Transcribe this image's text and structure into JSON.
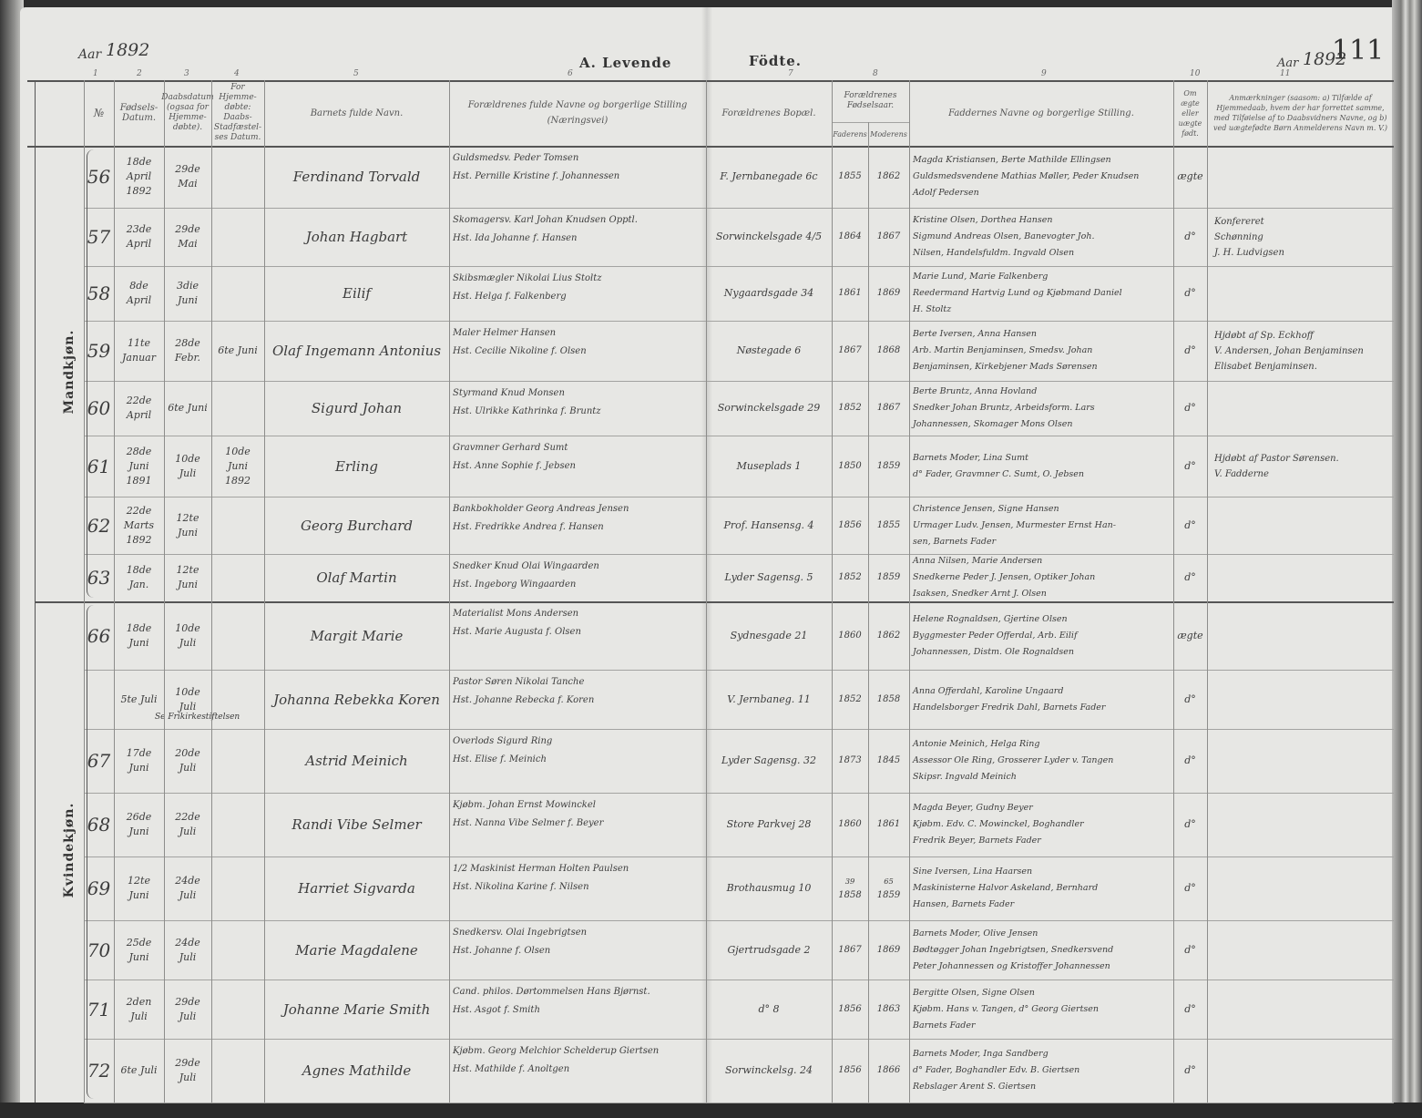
{
  "header": {
    "left_year_label": "Aar",
    "left_year": "1892",
    "right_year_label": "Aar",
    "right_year": "1892",
    "page_number": "111",
    "title_left": "A.  Levende",
    "title_right": "Födte.",
    "column_numbers": [
      "1",
      "2",
      "3",
      "4",
      "5",
      "6",
      "7",
      "8",
      "9",
      "10",
      "11"
    ],
    "columns": {
      "no": "№",
      "birth_date": "Fødsels-Datum.",
      "baptism_date": "Daabsdatum (ogsaa for Hjemme-døbte).",
      "home_baptized": "For Hjemme-døbte: Daabs-Stadfæstel-ses Datum.",
      "child_name": "Barnets fulde Navn.",
      "parents": "Forældrenes fulde Navne og borgerlige Stilling",
      "parents_sub": "(Næringsvei)",
      "residence": "Forældrenes Bopæl.",
      "parents_birth_year": "Forældrenes Fødselsaar.",
      "father": "Faderens",
      "mother": "Moderens",
      "sponsors": "Faddernes Navne og borgerlige Stilling.",
      "legitimate": "Om ægte eller uægte født.",
      "remarks": "Anmærkninger (saasom: a) Tilfælde af Hjemmedaab, hvem der har forrettet samme, med Tilføielse af to Daabsvidners Navne, og b) ved uægtefødte Børn Anmelderens Navn m. V.)"
    }
  },
  "sections": [
    {
      "label": "Mandkjøn.",
      "rows": [
        {
          "no": "56",
          "birth": "18de April 1892",
          "baptism": "29de Mai",
          "confirm": "",
          "name": "Ferdinand Torvald",
          "parents": [
            "Guldsmedsv. Peder Tomsen",
            "Hst. Pernille Kristine f. Johannessen"
          ],
          "residence": "F. Jernbanegade 6c",
          "father_year": "1855",
          "mother_year": "1862",
          "sponsors": [
            "Magda Kristiansen, Berte Mathilde Ellingsen",
            "Guldsmedsvendene Mathias Møller, Peder Knudsen",
            "Adolf Pedersen"
          ],
          "legit": "ægte",
          "remarks": []
        },
        {
          "no": "57",
          "birth": "23de April",
          "baptism": "29de Mai",
          "confirm": "",
          "name": "Johan Hagbart",
          "parents": [
            "Skomagersv. Karl Johan Knudsen Opptl.",
            "Hst. Ida Johanne f. Hansen"
          ],
          "residence": "Sorwinckelsgade 4/5",
          "father_year": "1864",
          "mother_year": "1867",
          "sponsors": [
            "Kristine Olsen, Dorthea Hansen",
            "Sigmund Andreas Olsen, Banevogter Joh.",
            "Nilsen, Handelsfuldm. Ingvald Olsen"
          ],
          "legit": "d°",
          "remarks": [
            "Konfereret",
            "Schønning",
            "J. H. Ludvigsen"
          ]
        },
        {
          "no": "58",
          "birth": "8de April",
          "baptism": "3die Juni",
          "confirm": "",
          "name": "Eilif",
          "parents": [
            "Skibsmægler Nikolai Lius Stoltz",
            "Hst. Helga f. Falkenberg"
          ],
          "residence": "Nygaardsgade 34",
          "father_year": "1861",
          "mother_year": "1869",
          "sponsors": [
            "Marie Lund, Marie Falkenberg",
            "Reedermand Hartvig Lund og Kjøbmand Daniel",
            "H. Stoltz"
          ],
          "legit": "d°",
          "remarks": []
        },
        {
          "no": "59",
          "birth": "11te Januar",
          "baptism": "28de Febr.",
          "confirm": "6te Juni",
          "name": "Olaf Ingemann Antonius",
          "parents": [
            "Maler Helmer Hansen",
            "Hst. Cecilie Nikoline f. Olsen"
          ],
          "residence": "Nøstegade 6",
          "father_year": "1867",
          "mother_year": "1868",
          "sponsors": [
            "Berte Iversen, Anna Hansen",
            "Arb. Martin Benjaminsen, Smedsv. Johan",
            "Benjaminsen, Kirkebjener Mads Sørensen"
          ],
          "legit": "d°",
          "remarks": [
            "Hjdøbt af Sp. Eckhoff",
            "V. Andersen, Johan Benjaminsen",
            "Elisabet Benjaminsen."
          ]
        },
        {
          "no": "60",
          "birth": "22de April",
          "baptism": "6te Juni",
          "confirm": "",
          "name": "Sigurd Johan",
          "parents": [
            "Styrmand Knud Monsen",
            "Hst. Ulrikke Kathrinka f. Bruntz"
          ],
          "residence": "Sorwinckelsgade 29",
          "father_year": "1852",
          "mother_year": "1867",
          "sponsors": [
            "Berte Bruntz, Anna Hovland",
            "Snedker Johan Bruntz, Arbeidsform. Lars",
            "Johannessen, Skomager Mons Olsen"
          ],
          "legit": "d°",
          "remarks": []
        },
        {
          "no": "61",
          "birth": "28de Juni 1891",
          "baptism": "10de Juli",
          "confirm": "10de Juni 1892",
          "name": "Erling",
          "parents": [
            "Gravmner Gerhard Sumt",
            "Hst. Anne Sophie f. Jebsen"
          ],
          "residence": "Museplads 1",
          "father_year": "1850",
          "mother_year": "1859",
          "sponsors": [
            "Barnets Moder, Lina Sumt",
            "d° Fader, Gravmner C. Sumt, O. Jebsen"
          ],
          "legit": "d°",
          "remarks": [
            "Hjdøbt af Pastor Sørensen.",
            "V. Fadderne"
          ]
        },
        {
          "no": "62",
          "birth": "22de Marts 1892",
          "baptism": "12te Juni",
          "confirm": "",
          "name": "Georg Burchard",
          "parents": [
            "Bankbokholder Georg Andreas Jensen",
            "Hst. Fredrikke Andrea f. Hansen"
          ],
          "residence": "Prof. Hansensg. 4",
          "father_year": "1856",
          "mother_year": "1855",
          "sponsors": [
            "Christence Jensen, Signe Hansen",
            "Urmager Ludv. Jensen, Murmester Ernst Han-",
            "sen, Barnets Fader"
          ],
          "legit": "d°",
          "remarks": []
        },
        {
          "no": "63",
          "birth": "18de Jan.",
          "baptism": "12te Juni",
          "confirm": "",
          "name": "Olaf Martin",
          "parents": [
            "Snedker Knud Olai Wingaarden",
            "Hst. Ingeborg Wingaarden"
          ],
          "residence": "Lyder Sagensg. 5",
          "father_year": "1852",
          "mother_year": "1859",
          "sponsors": [
            "Anna Nilsen, Marie Andersen",
            "Snedkerne Peder J. Jensen, Optiker Johan",
            "Isaksen, Snedker Arnt J. Olsen"
          ],
          "legit": "d°",
          "remarks": []
        }
      ]
    },
    {
      "label": "Kvindekjøn.",
      "rows": [
        {
          "no": "66",
          "birth": "18de Juni",
          "baptism": "10de Juli",
          "confirm": "",
          "name": "Margit Marie",
          "parents": [
            "Materialist Mons Andersen",
            "Hst. Marie Augusta f. Olsen"
          ],
          "residence": "Sydnesgade 21",
          "father_year": "1860",
          "mother_year": "1862",
          "sponsors": [
            "Helene Rognaldsen, Gjertine Olsen",
            "Byggmester Peder Offerdal, Arb. Eilif",
            "Johannessen, Distm. Ole Rognaldsen"
          ],
          "legit": "ægte",
          "remarks": []
        },
        {
          "no": "",
          "birth": "5te Juli",
          "baptism": "10de Juli",
          "confirm": "",
          "note": "Se Frikirkestiftelsen",
          "name": "Johanna Rebekka Koren",
          "parents": [
            "Pastor Søren Nikolai Tanche",
            "Hst. Johanne Rebecka f. Koren"
          ],
          "residence": "V. Jernbaneg. 11",
          "father_year": "1852",
          "mother_year": "1858",
          "sponsors": [
            "Anna Offerdahl, Karoline Ungaard",
            "Handelsborger Fredrik Dahl, Barnets Fader"
          ],
          "legit": "d°",
          "remarks": []
        },
        {
          "no": "67",
          "birth": "17de Juni",
          "baptism": "20de Juli",
          "confirm": "",
          "name": "Astrid Meinich",
          "parents": [
            "Overlods Sigurd Ring",
            "Hst. Elise f. Meinich"
          ],
          "residence": "Lyder Sagensg. 32",
          "father_year": "1873",
          "mother_year": "1845",
          "sponsors": [
            "Antonie Meinich, Helga Ring",
            "Assessor Ole Ring, Grosserer Lyder v. Tangen",
            "Skipsr. Ingvald Meinich"
          ],
          "legit": "d°",
          "remarks": []
        },
        {
          "no": "68",
          "birth": "26de Juni",
          "baptism": "22de Juli",
          "confirm": "",
          "name": "Randi Vibe Selmer",
          "parents": [
            "Kjøbm. Johan Ernst Mowinckel",
            "Hst. Nanna Vibe Selmer f. Beyer"
          ],
          "residence": "Store Parkvej 28",
          "father_year": "1860",
          "mother_year": "1861",
          "sponsors": [
            "Magda Beyer, Gudny Beyer",
            "Kjøbm. Edv. C. Mowinckel, Boghandler",
            "Fredrik Beyer, Barnets Fader"
          ],
          "legit": "d°",
          "remarks": []
        },
        {
          "no": "69",
          "birth": "12te Juni",
          "baptism": "24de Juli",
          "confirm": "",
          "name": "Harriet Sigvarda",
          "parents": [
            "1/2 Maskinist Herman Holten Paulsen",
            "Hst. Nikolina Karine f. Nilsen"
          ],
          "residence": "Brothausmug 10",
          "father_year": "1858",
          "father_year_note": "39",
          "mother_year": "1859",
          "mother_year_note": "65",
          "sponsors": [
            "Sine Iversen, Lina Haarsen",
            "Maskinisterne Halvor Askeland, Bernhard",
            "Hansen, Barnets Fader"
          ],
          "legit": "d°",
          "remarks": []
        },
        {
          "no": "70",
          "birth": "25de Juni",
          "baptism": "24de Juli",
          "confirm": "",
          "name": "Marie Magdalene",
          "parents": [
            "Snedkersv. Olai Ingebrigtsen",
            "Hst. Johanne f. Olsen"
          ],
          "residence": "Gjertrudsgade 2",
          "father_year": "1867",
          "mother_year": "1869",
          "sponsors": [
            "Barnets Moder, Olive Jensen",
            "Bødtøgger Johan Ingebrigtsen, Snedkersvend",
            "Peter Johannessen og Kristoffer Johannessen"
          ],
          "legit": "d°",
          "remarks": []
        },
        {
          "no": "71",
          "birth": "2den Juli",
          "baptism": "29de Juli",
          "confirm": "",
          "name": "Johanne Marie Smith",
          "parents": [
            "Cand. philos. Dørtommelsen Hans Bjørnst.",
            "Hst. Asgot f. Smith"
          ],
          "residence": "d° 8",
          "father_year": "1856",
          "mother_year": "1863",
          "sponsors": [
            "Bergitte Olsen, Signe Olsen",
            "Kjøbm. Hans v. Tangen, d° Georg Giertsen",
            "Barnets Fader"
          ],
          "legit": "d°",
          "remarks": []
        },
        {
          "no": "72",
          "birth": "6te Juli",
          "baptism": "29de Juli",
          "confirm": "",
          "name": "Agnes Mathilde",
          "parents": [
            "Kjøbm. Georg Melchior Schelderup Giertsen",
            "Hst. Mathilde f. Anoltgen"
          ],
          "residence": "Sorwinckelsg. 24",
          "father_year": "1856",
          "mother_year": "1866",
          "sponsors": [
            "Barnets Moder, Inga Sandberg",
            "d° Fader, Boghandler Edv. B. Giertsen",
            "Rebslager Arent S. Giertsen"
          ],
          "legit": "d°",
          "remarks": []
        }
      ]
    }
  ]
}
